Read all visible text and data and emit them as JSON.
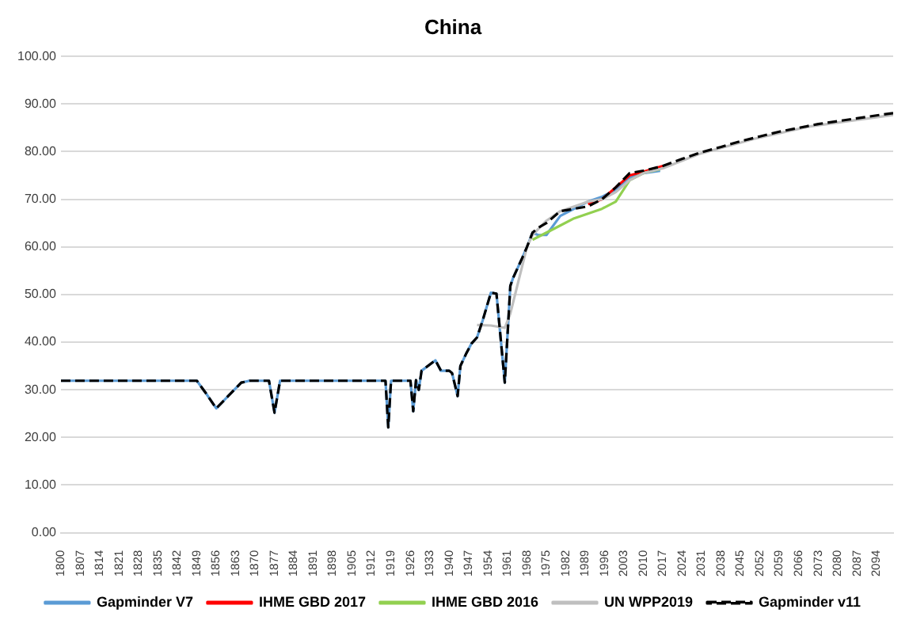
{
  "chart_data": {
    "type": "line",
    "title": "China",
    "xlim": [
      1800,
      2100
    ],
    "xticks": [
      1800,
      1807,
      1814,
      1821,
      1828,
      1835,
      1842,
      1849,
      1856,
      1863,
      1870,
      1877,
      1884,
      1891,
      1898,
      1905,
      1912,
      1919,
      1926,
      1933,
      1940,
      1947,
      1954,
      1961,
      1968,
      1975,
      1982,
      1989,
      1996,
      2003,
      2010,
      2017,
      2024,
      2031,
      2038,
      2045,
      2052,
      2059,
      2066,
      2073,
      2080,
      2087,
      2094
    ],
    "ylim": [
      0,
      100
    ],
    "yticks": [
      {
        "value": 0,
        "label": "0.00"
      },
      {
        "value": 10,
        "label": "10.00"
      },
      {
        "value": 20,
        "label": "20.00"
      },
      {
        "value": 30,
        "label": "30.00"
      },
      {
        "value": 40,
        "label": "40.00"
      },
      {
        "value": 50,
        "label": "50.00"
      },
      {
        "value": 60,
        "label": "60.00"
      },
      {
        "value": 70,
        "label": "70.00"
      },
      {
        "value": 80,
        "label": "80.00"
      },
      {
        "value": 90,
        "label": "90.00"
      },
      {
        "value": 100,
        "label": "100.00"
      }
    ],
    "grid": "y",
    "legend": "bottom",
    "marker": "none",
    "series": [
      {
        "name": "Gapminder V7",
        "color": "#5b9bd5",
        "x": [
          1800,
          1849,
          1852,
          1856,
          1860,
          1865,
          1868,
          1875,
          1877,
          1879,
          1916,
          1917,
          1918,
          1919,
          1926,
          1927,
          1928,
          1929,
          1930,
          1935,
          1937,
          1940,
          1941,
          1943,
          1944,
          1946,
          1948,
          1950,
          1952,
          1955,
          1957,
          1958,
          1960,
          1962,
          1963,
          1966,
          1968,
          1970,
          1972,
          1975,
          1980,
          1985,
          1990,
          1995,
          2000,
          2005,
          2010,
          2016
        ],
        "values": [
          31.9,
          31.9,
          29.5,
          26.1,
          28.5,
          31.5,
          31.9,
          31.9,
          25.2,
          31.9,
          31.9,
          31.9,
          22.1,
          31.9,
          31.9,
          25.5,
          32,
          30,
          34,
          36.2,
          34,
          34,
          33.5,
          28.7,
          35,
          37.5,
          39.7,
          41,
          44.5,
          50.4,
          50.2,
          44,
          31.5,
          51.8,
          53.5,
          57.3,
          60,
          63,
          62.5,
          62.5,
          66.5,
          68,
          69.5,
          70.5,
          72,
          74.5,
          75.5,
          76
        ]
      },
      {
        "name": "IHME GBD 2017",
        "color": "#ff0000",
        "x": [
          1990,
          1995,
          2000,
          2005,
          2010,
          2017
        ],
        "values": [
          69,
          70,
          72.5,
          75,
          75.8,
          77
        ]
      },
      {
        "name": "IHME GBD 2016",
        "color": "#92d050",
        "x": [
          1970,
          1975,
          1980,
          1985,
          1990,
          1995,
          2000,
          2005,
          2010,
          2016
        ],
        "values": [
          61.5,
          63,
          64.5,
          66,
          67,
          68,
          69.5,
          74,
          75.5,
          76.3
        ]
      },
      {
        "name": "UN WPP2019",
        "color": "#bfbfbf",
        "x": [
          1950,
          1955,
          1960,
          1962,
          1965,
          1968,
          1970,
          1975,
          1980,
          1985,
          1990,
          1995,
          2000,
          2005,
          2010,
          2017,
          2030,
          2050,
          2070,
          2100
        ],
        "values": [
          43.6,
          43.5,
          43,
          46,
          53,
          60,
          62.5,
          65.5,
          67.5,
          68.5,
          69.5,
          70,
          71.5,
          74,
          75.5,
          76.5,
          79.5,
          82.7,
          85.3,
          87.7
        ]
      },
      {
        "name": "Gapminder v11",
        "color": "#000000",
        "line_style": "dashed",
        "x": [
          1800,
          1849,
          1852,
          1856,
          1860,
          1865,
          1868,
          1875,
          1877,
          1879,
          1916,
          1917,
          1918,
          1919,
          1926,
          1927,
          1928,
          1929,
          1930,
          1935,
          1937,
          1940,
          1941,
          1943,
          1944,
          1946,
          1948,
          1950,
          1952,
          1955,
          1957,
          1958,
          1960,
          1962,
          1963,
          1966,
          1968,
          1970,
          1972,
          1975,
          1980,
          1985,
          1990,
          1995,
          2000,
          2005,
          2010,
          2017,
          2024,
          2031,
          2038,
          2045,
          2052,
          2059,
          2066,
          2073,
          2080,
          2087,
          2094,
          2100
        ],
        "values": [
          31.9,
          31.9,
          29.5,
          26.1,
          28.5,
          31.5,
          31.9,
          31.9,
          25.2,
          31.9,
          31.9,
          31.9,
          22.1,
          31.9,
          31.9,
          25.5,
          32,
          30,
          34,
          36.2,
          34,
          34,
          33.5,
          28.7,
          35,
          37.5,
          39.7,
          41,
          44.5,
          50.4,
          50.2,
          44,
          31.5,
          51.8,
          53.5,
          57.3,
          60,
          63,
          64,
          65,
          67.5,
          68,
          68.5,
          70,
          72.5,
          75.5,
          76,
          77,
          78.5,
          79.9,
          81,
          82.2,
          83.2,
          84.2,
          85,
          85.8,
          86.4,
          87,
          87.6,
          88.1
        ]
      }
    ]
  }
}
